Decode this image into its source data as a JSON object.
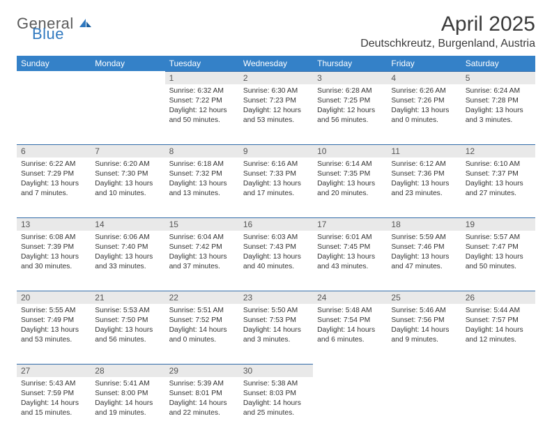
{
  "brand": {
    "general": "General",
    "blue": "Blue"
  },
  "title": "April 2025",
  "location": "Deutschkreutz, Burgenland, Austria",
  "accent_color": "#3481c8",
  "header_text_color": "#ffffff",
  "daynum_bg": "#e9e9e9",
  "rule_color": "#2f6aa8",
  "weekdays": [
    "Sunday",
    "Monday",
    "Tuesday",
    "Wednesday",
    "Thursday",
    "Friday",
    "Saturday"
  ],
  "weeks": [
    [
      null,
      null,
      {
        "n": "1",
        "sunrise": "Sunrise: 6:32 AM",
        "sunset": "Sunset: 7:22 PM",
        "daylight": "Daylight: 12 hours and 50 minutes."
      },
      {
        "n": "2",
        "sunrise": "Sunrise: 6:30 AM",
        "sunset": "Sunset: 7:23 PM",
        "daylight": "Daylight: 12 hours and 53 minutes."
      },
      {
        "n": "3",
        "sunrise": "Sunrise: 6:28 AM",
        "sunset": "Sunset: 7:25 PM",
        "daylight": "Daylight: 12 hours and 56 minutes."
      },
      {
        "n": "4",
        "sunrise": "Sunrise: 6:26 AM",
        "sunset": "Sunset: 7:26 PM",
        "daylight": "Daylight: 13 hours and 0 minutes."
      },
      {
        "n": "5",
        "sunrise": "Sunrise: 6:24 AM",
        "sunset": "Sunset: 7:28 PM",
        "daylight": "Daylight: 13 hours and 3 minutes."
      }
    ],
    [
      {
        "n": "6",
        "sunrise": "Sunrise: 6:22 AM",
        "sunset": "Sunset: 7:29 PM",
        "daylight": "Daylight: 13 hours and 7 minutes."
      },
      {
        "n": "7",
        "sunrise": "Sunrise: 6:20 AM",
        "sunset": "Sunset: 7:30 PM",
        "daylight": "Daylight: 13 hours and 10 minutes."
      },
      {
        "n": "8",
        "sunrise": "Sunrise: 6:18 AM",
        "sunset": "Sunset: 7:32 PM",
        "daylight": "Daylight: 13 hours and 13 minutes."
      },
      {
        "n": "9",
        "sunrise": "Sunrise: 6:16 AM",
        "sunset": "Sunset: 7:33 PM",
        "daylight": "Daylight: 13 hours and 17 minutes."
      },
      {
        "n": "10",
        "sunrise": "Sunrise: 6:14 AM",
        "sunset": "Sunset: 7:35 PM",
        "daylight": "Daylight: 13 hours and 20 minutes."
      },
      {
        "n": "11",
        "sunrise": "Sunrise: 6:12 AM",
        "sunset": "Sunset: 7:36 PM",
        "daylight": "Daylight: 13 hours and 23 minutes."
      },
      {
        "n": "12",
        "sunrise": "Sunrise: 6:10 AM",
        "sunset": "Sunset: 7:37 PM",
        "daylight": "Daylight: 13 hours and 27 minutes."
      }
    ],
    [
      {
        "n": "13",
        "sunrise": "Sunrise: 6:08 AM",
        "sunset": "Sunset: 7:39 PM",
        "daylight": "Daylight: 13 hours and 30 minutes."
      },
      {
        "n": "14",
        "sunrise": "Sunrise: 6:06 AM",
        "sunset": "Sunset: 7:40 PM",
        "daylight": "Daylight: 13 hours and 33 minutes."
      },
      {
        "n": "15",
        "sunrise": "Sunrise: 6:04 AM",
        "sunset": "Sunset: 7:42 PM",
        "daylight": "Daylight: 13 hours and 37 minutes."
      },
      {
        "n": "16",
        "sunrise": "Sunrise: 6:03 AM",
        "sunset": "Sunset: 7:43 PM",
        "daylight": "Daylight: 13 hours and 40 minutes."
      },
      {
        "n": "17",
        "sunrise": "Sunrise: 6:01 AM",
        "sunset": "Sunset: 7:45 PM",
        "daylight": "Daylight: 13 hours and 43 minutes."
      },
      {
        "n": "18",
        "sunrise": "Sunrise: 5:59 AM",
        "sunset": "Sunset: 7:46 PM",
        "daylight": "Daylight: 13 hours and 47 minutes."
      },
      {
        "n": "19",
        "sunrise": "Sunrise: 5:57 AM",
        "sunset": "Sunset: 7:47 PM",
        "daylight": "Daylight: 13 hours and 50 minutes."
      }
    ],
    [
      {
        "n": "20",
        "sunrise": "Sunrise: 5:55 AM",
        "sunset": "Sunset: 7:49 PM",
        "daylight": "Daylight: 13 hours and 53 minutes."
      },
      {
        "n": "21",
        "sunrise": "Sunrise: 5:53 AM",
        "sunset": "Sunset: 7:50 PM",
        "daylight": "Daylight: 13 hours and 56 minutes."
      },
      {
        "n": "22",
        "sunrise": "Sunrise: 5:51 AM",
        "sunset": "Sunset: 7:52 PM",
        "daylight": "Daylight: 14 hours and 0 minutes."
      },
      {
        "n": "23",
        "sunrise": "Sunrise: 5:50 AM",
        "sunset": "Sunset: 7:53 PM",
        "daylight": "Daylight: 14 hours and 3 minutes."
      },
      {
        "n": "24",
        "sunrise": "Sunrise: 5:48 AM",
        "sunset": "Sunset: 7:54 PM",
        "daylight": "Daylight: 14 hours and 6 minutes."
      },
      {
        "n": "25",
        "sunrise": "Sunrise: 5:46 AM",
        "sunset": "Sunset: 7:56 PM",
        "daylight": "Daylight: 14 hours and 9 minutes."
      },
      {
        "n": "26",
        "sunrise": "Sunrise: 5:44 AM",
        "sunset": "Sunset: 7:57 PM",
        "daylight": "Daylight: 14 hours and 12 minutes."
      }
    ],
    [
      {
        "n": "27",
        "sunrise": "Sunrise: 5:43 AM",
        "sunset": "Sunset: 7:59 PM",
        "daylight": "Daylight: 14 hours and 15 minutes."
      },
      {
        "n": "28",
        "sunrise": "Sunrise: 5:41 AM",
        "sunset": "Sunset: 8:00 PM",
        "daylight": "Daylight: 14 hours and 19 minutes."
      },
      {
        "n": "29",
        "sunrise": "Sunrise: 5:39 AM",
        "sunset": "Sunset: 8:01 PM",
        "daylight": "Daylight: 14 hours and 22 minutes."
      },
      {
        "n": "30",
        "sunrise": "Sunrise: 5:38 AM",
        "sunset": "Sunset: 8:03 PM",
        "daylight": "Daylight: 14 hours and 25 minutes."
      },
      null,
      null,
      null
    ]
  ]
}
